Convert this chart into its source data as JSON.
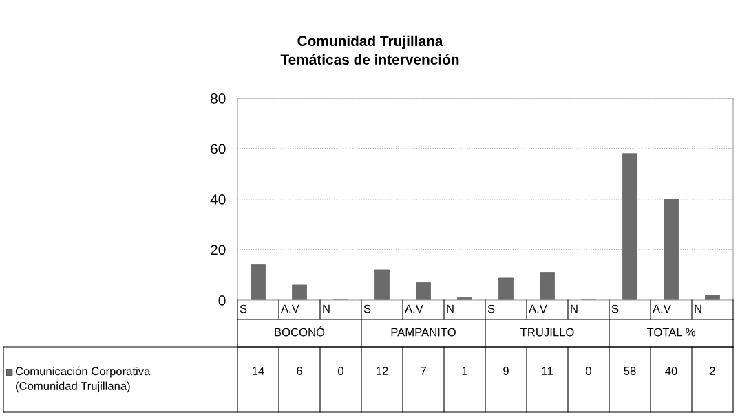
{
  "chart_data": {
    "type": "bar",
    "title": "Comunidad Trujillana\nTemáticas de intervención",
    "categories": [
      "S",
      "A.V",
      "N",
      "S",
      "A.V",
      "N",
      "S",
      "A.V",
      "N",
      "S",
      "A.V",
      "N"
    ],
    "annotations": [
      "BOCONÓ",
      "PAMPANITO",
      "TRUJILLO",
      "TOTAL %"
    ],
    "series": [
      {
        "name": "Comunicación Corporativa\n(Comunidad Trujillana)",
        "color": "#6b6b6b",
        "values": [
          14,
          6,
          0,
          12,
          7,
          1,
          9,
          11,
          0,
          58,
          40,
          2
        ]
      }
    ],
    "ylim": [
      0,
      80
    ],
    "yticks": [
      0,
      20,
      40,
      60,
      80
    ],
    "grid": "y",
    "data_labels": true
  }
}
